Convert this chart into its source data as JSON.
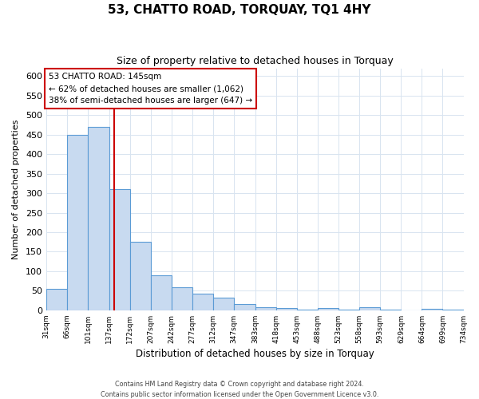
{
  "title": "53, CHATTO ROAD, TORQUAY, TQ1 4HY",
  "subtitle": "Size of property relative to detached houses in Torquay",
  "xlabel": "Distribution of detached houses by size in Torquay",
  "ylabel": "Number of detached properties",
  "bar_edges": [
    31,
    66,
    101,
    137,
    172,
    207,
    242,
    277,
    312,
    347,
    383,
    418,
    453,
    488,
    523,
    558,
    593,
    629,
    664,
    699,
    734
  ],
  "bar_heights": [
    55,
    450,
    470,
    310,
    175,
    90,
    58,
    42,
    32,
    15,
    7,
    6,
    1,
    5,
    1,
    8,
    1,
    0,
    3,
    2
  ],
  "bar_color": "#c8daf0",
  "bar_edge_color": "#5b9bd5",
  "vline_x": 145,
  "vline_color": "#cc0000",
  "annotation_line1": "53 CHATTO ROAD: 145sqm",
  "annotation_line2": "← 62% of detached houses are smaller (1,062)",
  "annotation_line3": "38% of semi-detached houses are larger (647) →",
  "annotation_box_color": "#ffffff",
  "annotation_box_edge_color": "#cc0000",
  "ylim": [
    0,
    620
  ],
  "yticks": [
    0,
    50,
    100,
    150,
    200,
    250,
    300,
    350,
    400,
    450,
    500,
    550,
    600
  ],
  "tick_labels": [
    "31sqm",
    "66sqm",
    "101sqm",
    "137sqm",
    "172sqm",
    "207sqm",
    "242sqm",
    "277sqm",
    "312sqm",
    "347sqm",
    "383sqm",
    "418sqm",
    "453sqm",
    "488sqm",
    "523sqm",
    "558sqm",
    "593sqm",
    "629sqm",
    "664sqm",
    "699sqm",
    "734sqm"
  ],
  "footer1": "Contains HM Land Registry data © Crown copyright and database right 2024.",
  "footer2": "Contains public sector information licensed under the Open Government Licence v3.0.",
  "grid_color": "#d8e4f0",
  "background_color": "#ffffff"
}
